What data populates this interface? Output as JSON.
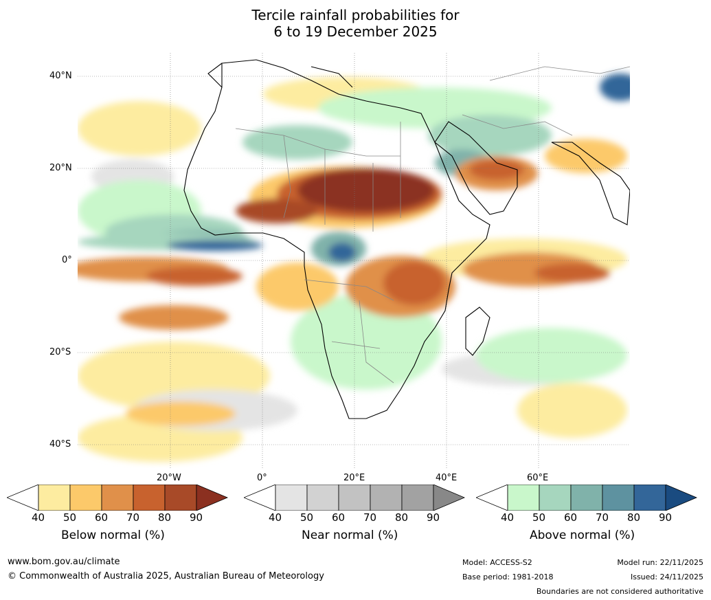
{
  "title": {
    "line1": "Tercile rainfall probabilities for",
    "line2": "6 to 19 December 2025"
  },
  "map": {
    "lat_labels": [
      "40°N",
      "20°N",
      "0°",
      "20°S",
      "40°S"
    ],
    "lon_labels": [
      "20°W",
      "0°",
      "20°E",
      "40°E",
      "60°E"
    ]
  },
  "legends": [
    {
      "label": "Below normal (%)",
      "ticks": [
        "40",
        "50",
        "60",
        "70",
        "80",
        "90"
      ],
      "colors": [
        "#ffffff",
        "#fdeca0",
        "#fcc96a",
        "#e0904a",
        "#c8622e",
        "#a84a28",
        "#8b3020"
      ]
    },
    {
      "label": "Near normal (%)",
      "ticks": [
        "40",
        "50",
        "60",
        "70",
        "80",
        "90"
      ],
      "colors": [
        "#ffffff",
        "#e4e4e4",
        "#d2d2d2",
        "#c2c2c2",
        "#b2b2b2",
        "#a2a2a2",
        "#888888"
      ]
    },
    {
      "label": "Above normal (%)",
      "ticks": [
        "40",
        "50",
        "60",
        "70",
        "80",
        "90"
      ],
      "colors": [
        "#ffffff",
        "#c9f7cb",
        "#a6d6be",
        "#80b2aa",
        "#5e92a0",
        "#336699",
        "#1a4b80"
      ]
    }
  ],
  "footer": {
    "url": "www.bom.gov.au/climate",
    "copyright": "© Commonwealth of Australia 2025, Australian Bureau of Meteorology",
    "model": "Model: ACCESS-S2",
    "base_period": "Base period: 1981-2018",
    "model_run": "Model run: 22/11/2025",
    "issued": "Issued: 24/11/2025",
    "disclaimer": "Boundaries are not considered authoritative"
  }
}
